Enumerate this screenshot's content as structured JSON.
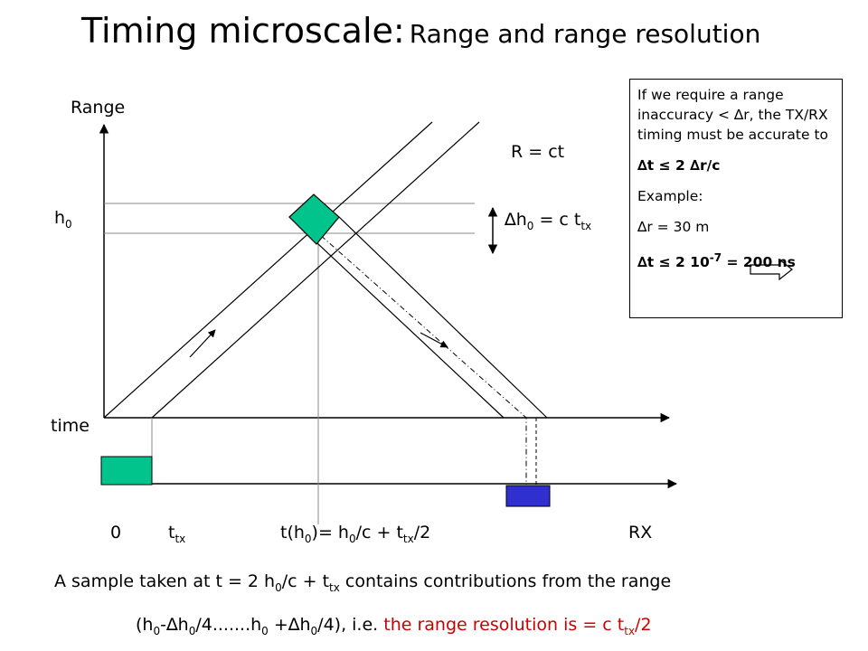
{
  "title": {
    "main": "Timing microscale:",
    "sub": "Range and range resolution"
  },
  "axes": {
    "y_label": "Range",
    "x_label": "time",
    "h0_label": "h",
    "h0_sub": "0"
  },
  "equation": "R = ct",
  "delta_h": {
    "prefix": "∆h",
    "sub1": "0",
    "middle": " = c t",
    "sub2": "tx"
  },
  "time_labels": {
    "zero": "0",
    "ttx": "t",
    "ttx_sub": "tx",
    "th0_a": "t(h",
    "th0_sub1": "0",
    "th0_b": ")= h",
    "th0_sub2": "0",
    "th0_c": "/c + t",
    "th0_sub3": "tx",
    "th0_d": "/2",
    "rx": "RX"
  },
  "infobox": {
    "line1": "If we require a range inaccuracy < ∆r, the TX/RX timing must be accurate to",
    "line2": "∆t  ≤  2  ∆r/c",
    "line3": "Example:",
    "line4": "∆r = 30 m",
    "line5_a": "∆t  ≤  2 10",
    "line5_sup": "-7",
    "line5_b": " = 200 ns"
  },
  "bottom": {
    "line1_a": "A sample taken at t = 2 h",
    "line1_sub1": "0",
    "line1_b": "/c + t",
    "line1_sub2": "tx",
    "line1_c": " contains contributions from the range",
    "line2_a": "(h",
    "line2_sub1": "0",
    "line2_b": "-∆h",
    "line2_sub2": "0",
    "line2_c": "/4.......h",
    "line2_sub3": "0",
    "line2_d": " +∆h",
    "line2_sub4": "0",
    "line2_e": "/4),   i.e. ",
    "line2_red_a": "the range resolution is = c t",
    "line2_red_sub": "tx",
    "line2_red_b": "/2"
  },
  "colors": {
    "tx_pulse": "#00c48c",
    "rx_pulse": "#3030d0",
    "highlight": "#cc0000",
    "line": "#000000"
  }
}
